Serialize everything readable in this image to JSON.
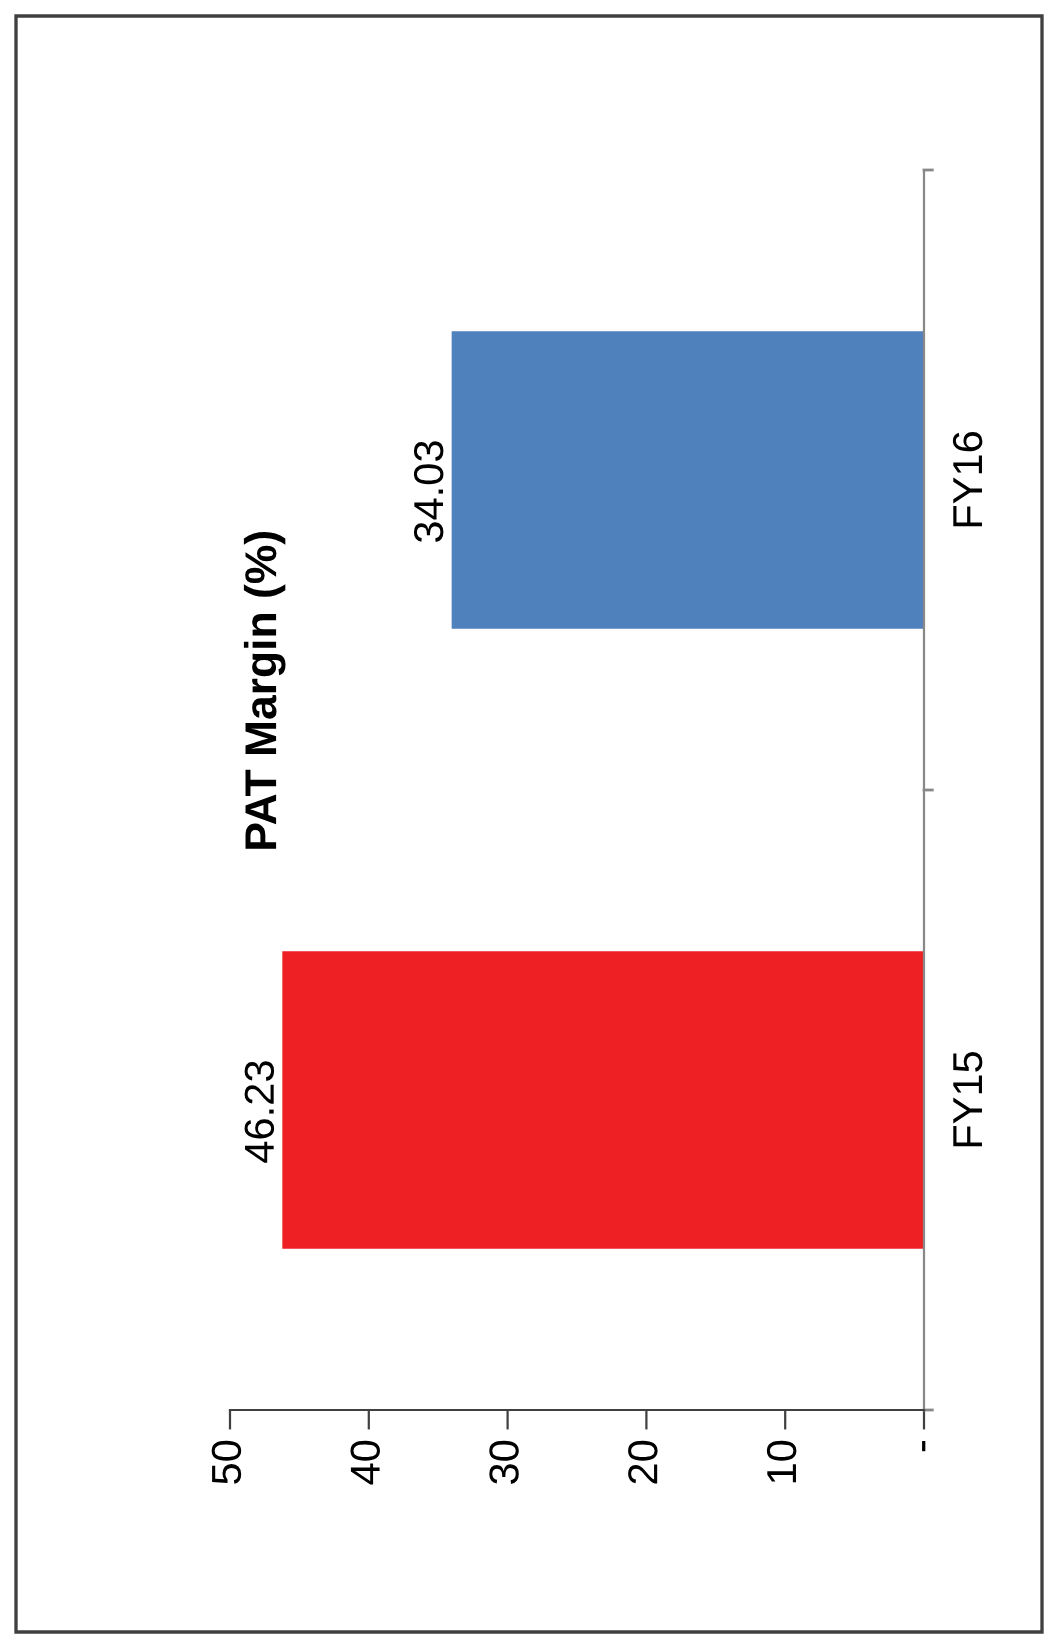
{
  "chart_data": {
    "type": "bar",
    "orientation": "horizontal",
    "title": "PAT Margin (%)",
    "categories": [
      "FY16",
      "FY15"
    ],
    "values": [
      34.03,
      46.23
    ],
    "colors": [
      "#4f81bd",
      "#ee2024"
    ],
    "xlim": [
      50,
      0
    ],
    "xticks": [
      50,
      40,
      30,
      20,
      10,
      {
        "value": 0,
        "label": "-"
      }
    ],
    "data_labels": true,
    "grid": false,
    "legend": false
  }
}
